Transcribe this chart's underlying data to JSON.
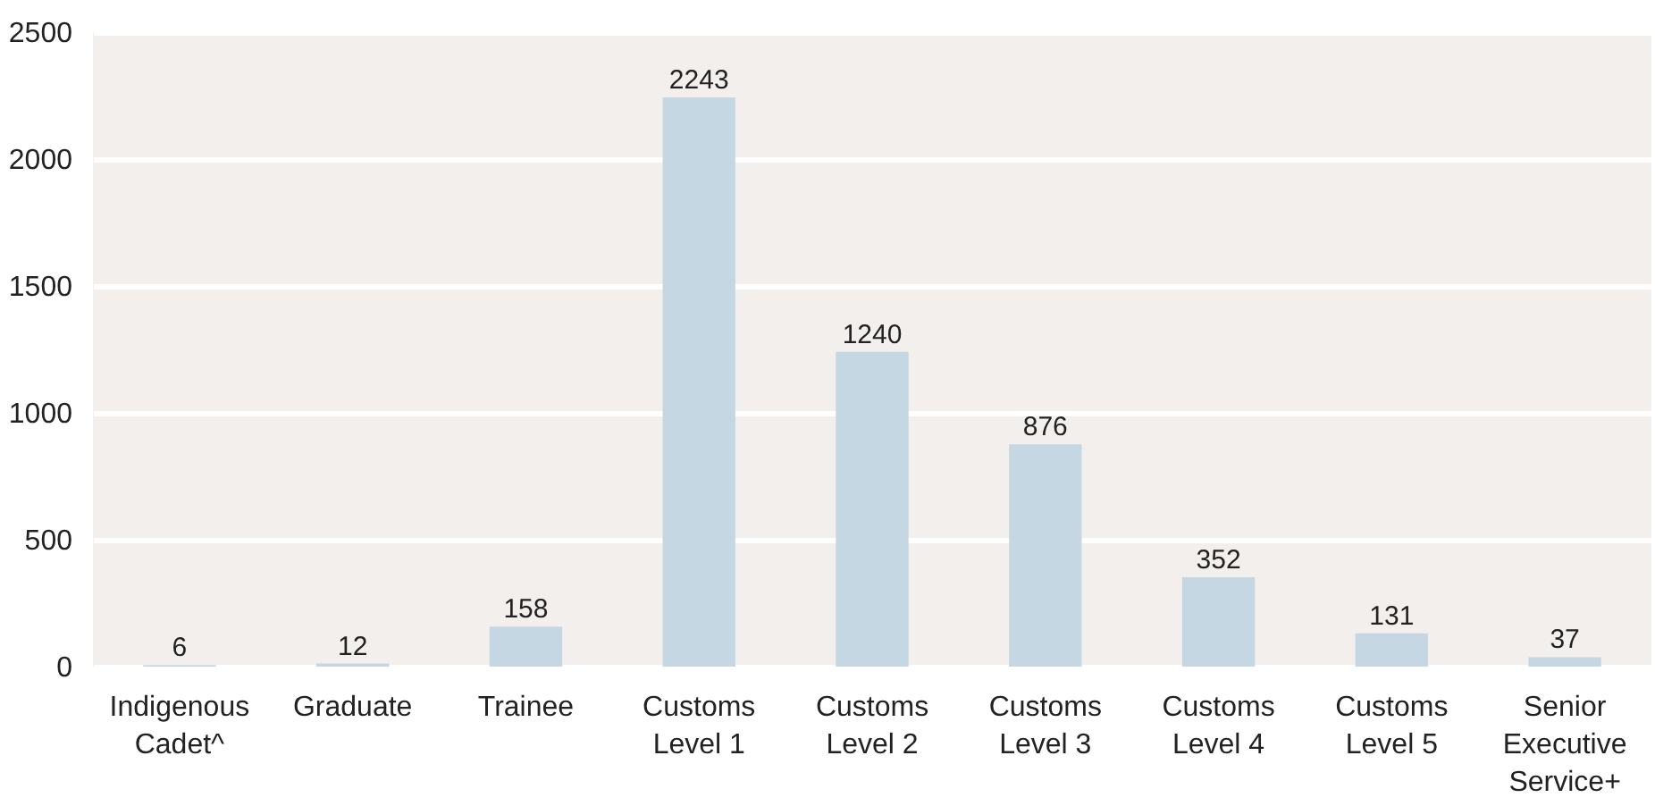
{
  "chart_data": {
    "type": "bar",
    "categories": [
      "Indigenous Cadet^",
      "Graduate",
      "Trainee",
      "Customs Level 1",
      "Customs Level 2",
      "Customs Level 3",
      "Customs Level 4",
      "Customs Level 5",
      "Senior Executive Service+"
    ],
    "values": [
      6,
      12,
      158,
      2243,
      1240,
      876,
      352,
      131,
      37
    ],
    "color": "#c5d7e3",
    "ylim": [
      0,
      2500
    ],
    "yticks": [
      0,
      500,
      1000,
      1500,
      2000,
      2500
    ],
    "grid": "y",
    "data_labels": true
  }
}
